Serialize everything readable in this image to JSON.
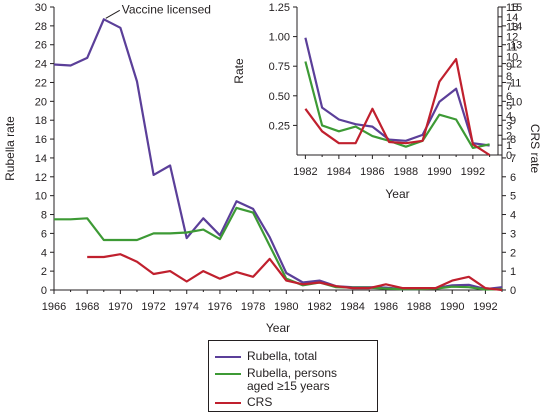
{
  "colors": {
    "total": "#5b3f99",
    "adult": "#3d9a35",
    "crs": "#c0202e",
    "axis": "#231f20"
  },
  "chart_data": [
    {
      "type": "line",
      "xlabel": "Year",
      "ylabel_left": "Rubella rate",
      "ylabel_right": "CRS rate",
      "xlim": [
        1966,
        1993
      ],
      "ylim_left": [
        0,
        30
      ],
      "ylim_right": [
        0,
        15
      ],
      "x_ticks": [
        1966,
        1968,
        1970,
        1972,
        1974,
        1976,
        1978,
        1980,
        1982,
        1984,
        1986,
        1988,
        1990,
        1992
      ],
      "y_ticks_left": [
        0,
        2,
        4,
        6,
        8,
        10,
        12,
        14,
        16,
        18,
        20,
        22,
        24,
        26,
        28,
        30
      ],
      "y_ticks_right": [
        0,
        1,
        2,
        3,
        4,
        5,
        6,
        7,
        8,
        9,
        10,
        11,
        12,
        13,
        14,
        15
      ],
      "annotation": {
        "text": "Vaccine licensed",
        "x": 1969,
        "y": 28.7
      },
      "series": [
        {
          "name": "Rubella, total",
          "axis": "left",
          "color_key": "total",
          "x": [
            1966,
            1967,
            1968,
            1969,
            1970,
            1971,
            1972,
            1973,
            1974,
            1975,
            1976,
            1977,
            1978,
            1979,
            1980,
            1981,
            1982,
            1983,
            1984,
            1985,
            1986,
            1987,
            1988,
            1989,
            1990,
            1991,
            1992,
            1993
          ],
          "y": [
            23.9,
            23.8,
            24.6,
            28.7,
            27.8,
            22.1,
            12.2,
            13.2,
            5.5,
            7.6,
            5.8,
            9.4,
            8.6,
            5.6,
            1.8,
            0.8,
            1.0,
            0.4,
            0.3,
            0.3,
            0.25,
            0.1,
            0.1,
            0.2,
            0.5,
            0.55,
            0.1,
            0.3
          ]
        },
        {
          "name": "Rubella, persons aged ≥15 years",
          "axis": "left",
          "color_key": "adult",
          "x": [
            1966,
            1967,
            1968,
            1969,
            1970,
            1971,
            1972,
            1973,
            1974,
            1975,
            1976,
            1977,
            1978,
            1979,
            1980,
            1981,
            1982,
            1983,
            1984,
            1985,
            1986,
            1987,
            1988,
            1989,
            1990,
            1991,
            1992,
            1993
          ],
          "y": [
            7.5,
            7.5,
            7.6,
            5.3,
            5.3,
            5.3,
            6.0,
            6.0,
            6.1,
            6.4,
            5.4,
            8.7,
            8.2,
            4.7,
            1.2,
            0.5,
            0.8,
            0.3,
            0.25,
            0.25,
            0.15,
            0.1,
            0.1,
            0.15,
            0.35,
            0.3,
            0.05,
            0.1
          ]
        },
        {
          "name": "CRS",
          "axis": "right",
          "color_key": "crs",
          "x": [
            1968,
            1969,
            1970,
            1971,
            1972,
            1973,
            1974,
            1975,
            1976,
            1977,
            1978,
            1979,
            1980,
            1981,
            1982,
            1983,
            1984,
            1985,
            1986,
            1987,
            1988,
            1989,
            1990,
            1991,
            1992,
            1993
          ],
          "y": [
            1.75,
            1.75,
            1.9,
            1.5,
            0.85,
            1.0,
            0.45,
            1.0,
            0.6,
            0.95,
            0.7,
            1.65,
            0.5,
            0.3,
            0.4,
            0.2,
            0.1,
            0.1,
            0.3,
            0.1,
            0.1,
            0.1,
            0.5,
            0.7,
            0.1,
            0.0
          ]
        }
      ]
    },
    {
      "type": "line",
      "xlabel": "Year",
      "ylabel_left": "Rate",
      "ylabel_right": "CRS rate",
      "xlim": [
        1981.5,
        1993.5
      ],
      "ylim_left": [
        0,
        1.25
      ],
      "ylim_right": [
        0,
        15
      ],
      "x_ticks": [
        1982,
        1984,
        1986,
        1988,
        1990,
        1992
      ],
      "y_ticks_left": [
        0.25,
        0.5,
        0.75,
        1.0,
        1.25
      ],
      "y_tick_labels_left": [
        "0.25",
        "0.50",
        "0.75",
        "1.00",
        "1.25"
      ],
      "y_ticks_right": [
        0,
        1,
        2,
        3,
        4,
        5,
        6,
        7,
        8,
        9,
        10,
        11,
        12,
        13,
        14,
        15
      ],
      "series": [
        {
          "name": "Rubella, total",
          "axis": "left",
          "color_key": "total",
          "x": [
            1982,
            1983,
            1984,
            1985,
            1986,
            1987,
            1988,
            1989,
            1990,
            1991,
            1992,
            1993
          ],
          "y": [
            0.99,
            0.4,
            0.3,
            0.26,
            0.24,
            0.13,
            0.12,
            0.17,
            0.45,
            0.56,
            0.1,
            0.08
          ]
        },
        {
          "name": "Rubella, persons aged ≥15 years",
          "axis": "left",
          "color_key": "adult",
          "x": [
            1982,
            1983,
            1984,
            1985,
            1986,
            1987,
            1988,
            1989,
            1990,
            1991,
            1992,
            1993
          ],
          "y": [
            0.79,
            0.25,
            0.2,
            0.24,
            0.16,
            0.12,
            0.07,
            0.12,
            0.34,
            0.3,
            0.06,
            0.09
          ]
        },
        {
          "name": "CRS",
          "axis": "left",
          "color_key": "crs",
          "x": [
            1982,
            1983,
            1984,
            1985,
            1986,
            1987,
            1988,
            1989,
            1990,
            1991,
            1992,
            1993
          ],
          "y": [
            0.39,
            0.2,
            0.1,
            0.1,
            0.39,
            0.11,
            0.1,
            0.12,
            0.62,
            0.81,
            0.09,
            0.0
          ]
        }
      ]
    }
  ],
  "legend": {
    "items": [
      {
        "label": "Rubella, total",
        "color_key": "total"
      },
      {
        "label": "Rubella, persons\naged ≥15 years",
        "color_key": "adult"
      },
      {
        "label": "CRS",
        "color_key": "crs"
      }
    ]
  }
}
